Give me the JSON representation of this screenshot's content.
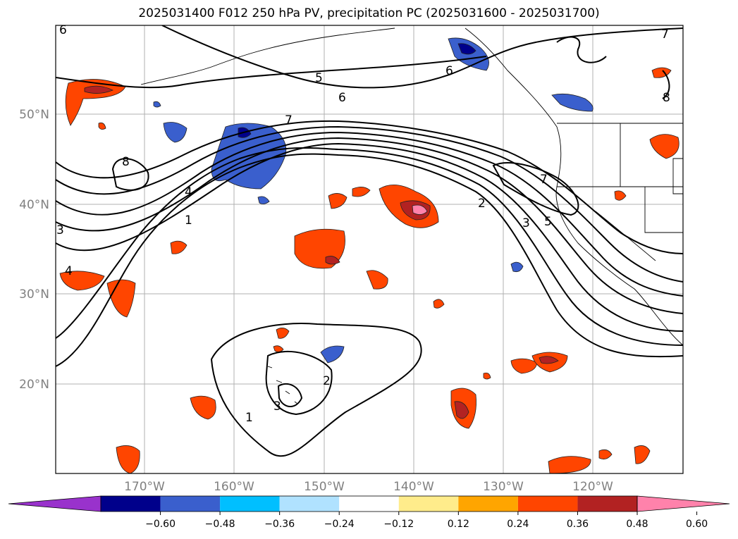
{
  "title": "2025031400 F012 250 hPa PV, precipitation PC (2025031600 - 2025031700)",
  "map": {
    "lat_labels": [
      "50°N",
      "40°N",
      "30°N",
      "20°N"
    ],
    "lon_labels": [
      "170°W",
      "160°W",
      "150°W",
      "140°W",
      "130°W",
      "120°W"
    ],
    "contour_labels": [
      "6",
      "5",
      "6",
      "7",
      "8",
      "4",
      "1",
      "3",
      "4",
      "2",
      "3",
      "5",
      "7",
      "6",
      "8",
      "7",
      "2",
      "3",
      "1"
    ]
  },
  "colorbar": {
    "ticks": [
      "−0.60",
      "−0.48",
      "−0.36",
      "−0.24",
      "−0.12",
      "0.12",
      "0.24",
      "0.36",
      "0.48",
      "0.60"
    ],
    "colors": [
      "#9932cc",
      "#00008b",
      "#3a5fcd",
      "#00bfff",
      "#b0e2ff",
      "#ffffff",
      "#ffec8b",
      "#ffa500",
      "#ff4500",
      "#b22222",
      "#ff82ab"
    ]
  }
}
